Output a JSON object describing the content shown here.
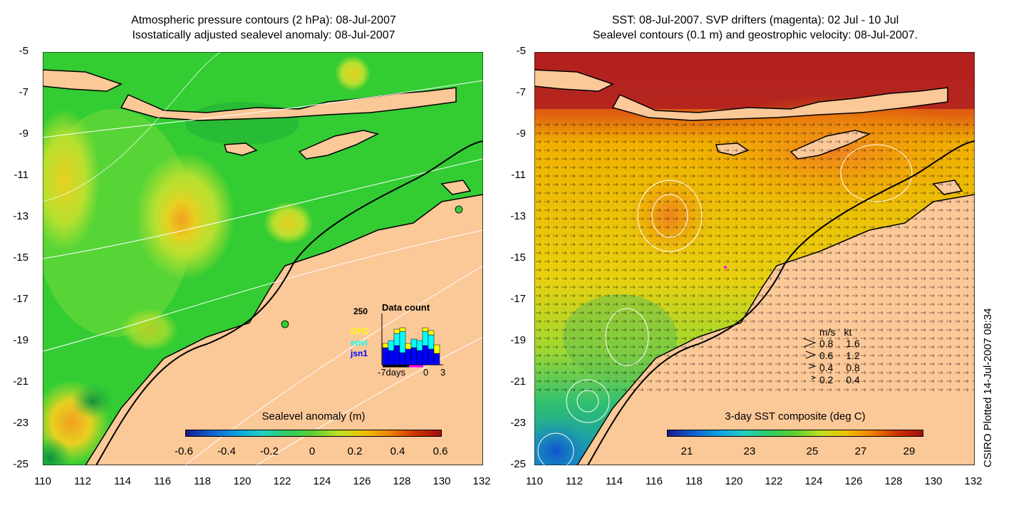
{
  "left_panel": {
    "title_line1": "Atmospheric pressure contours (2 hPa): 08-Jul-2007",
    "title_line2": "Isostatically adjusted sealevel anomaly: 08-Jul-2007",
    "yticks": [
      "-5",
      "-7",
      "-9",
      "-11",
      "-13",
      "-15",
      "-17",
      "-19",
      "-21",
      "-23",
      "-25"
    ],
    "xticks": [
      "110",
      "112",
      "114",
      "116",
      "118",
      "120",
      "122",
      "124",
      "126",
      "128",
      "130",
      "132"
    ],
    "colorbar_title": "Sealevel anomaly (m)",
    "colorbar_labels": [
      "-0.6",
      "-0.4",
      "-0.2",
      "0",
      "0.2",
      "0.4",
      "0.6"
    ],
    "data_count": {
      "title": "Data count",
      "max_label": "250",
      "x_labels": [
        "-7days",
        "0",
        "3"
      ],
      "missions": [
        {
          "name": "GFO",
          "color": "#ffff00"
        },
        {
          "name": "envi",
          "color": "#00ffff"
        },
        {
          "name": "jsn1",
          "color": "#0000ff"
        }
      ]
    }
  },
  "right_panel": {
    "title_line1": "SST: 08-Jul-2007. SVP drifters (magenta): 02 Jul - 10 Jul",
    "title_line2": "Sealevel contours (0.1 m) and geostrophic velocity: 08-Jul-2007.",
    "yticks": [
      "-5",
      "-7",
      "-9",
      "-11",
      "-13",
      "-15",
      "-17",
      "-19",
      "-21",
      "-23",
      "-25"
    ],
    "xticks": [
      "110",
      "112",
      "114",
      "116",
      "118",
      "120",
      "122",
      "124",
      "126",
      "128",
      "130",
      "132"
    ],
    "colorbar_title": "3-day SST composite (deg C)",
    "colorbar_labels": [
      "21",
      "23",
      "25",
      "27",
      "29"
    ],
    "velocity_legend": {
      "header_ms": "m/s",
      "header_kt": "kt",
      "rows": [
        {
          "ms": "0.8",
          "kt": "1.6"
        },
        {
          "ms": "0.6",
          "kt": "1.2"
        },
        {
          "ms": "0.4",
          "kt": "0.8"
        },
        {
          "ms": "0.2",
          "kt": "0.4"
        }
      ]
    }
  },
  "credit": "CSIRO Plotted 14-Jul-2007 08:34",
  "colors": {
    "land": "#fbc898",
    "sla_ocean": "#33cc33",
    "sst_ocean": "#f0c000"
  }
}
